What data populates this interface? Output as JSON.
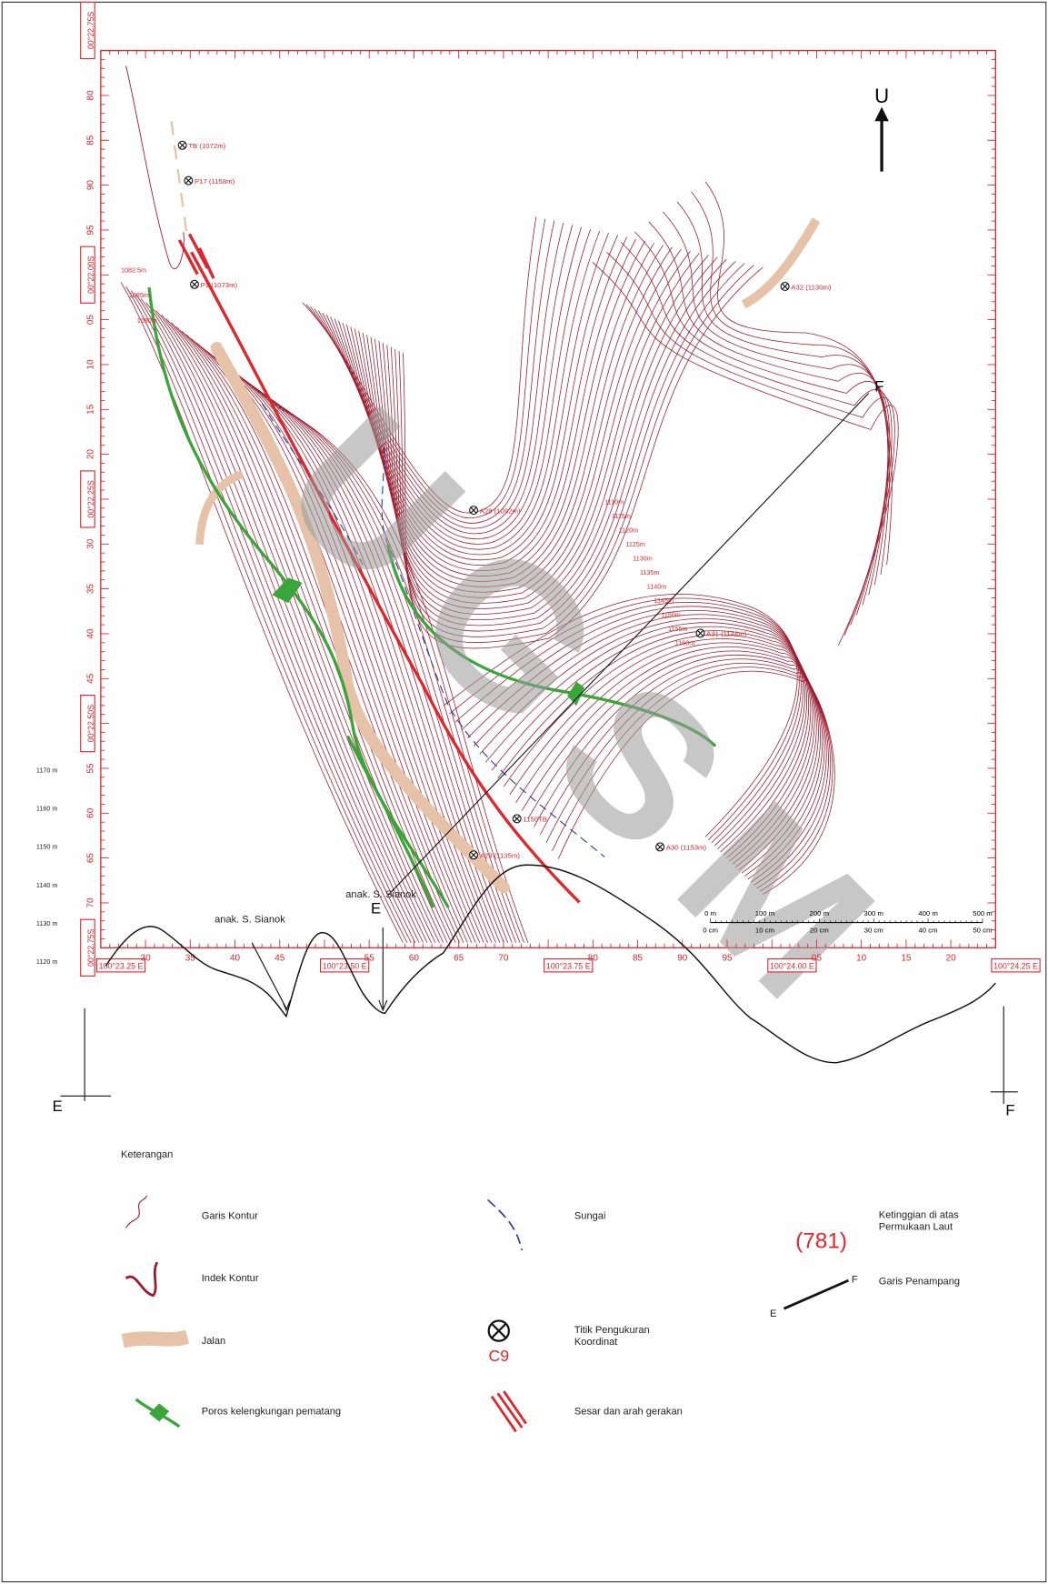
{
  "map": {
    "watermark": "UGSM",
    "north": "U",
    "lat_labels": [
      "00°22.75S",
      "80",
      "85",
      "90",
      "95",
      "00°22.00S",
      "05",
      "10",
      "15",
      "20",
      "00°22.25S",
      "30",
      "35",
      "40",
      "45",
      "00°22.50S",
      "55",
      "60",
      "65",
      "70",
      "00°22.75S"
    ],
    "lon_labels": [
      "100°23.25 E",
      "30",
      "35",
      "40",
      "45",
      "100°23.50 E",
      "55",
      "60",
      "65",
      "70",
      "100°23.75 E",
      "80",
      "85",
      "90",
      "95",
      "100°24.00 E",
      "05",
      "10",
      "15",
      "20",
      "100°24.25 E"
    ],
    "points": [
      "TB (1072m)",
      "P17 (1158m)",
      "P1 (1073m)",
      "A32 (1130m)",
      "A28 (1092m)",
      "A31 (1144m)",
      "1150TB",
      "A30 (1153m)",
      "A29 (1135m)"
    ],
    "contour_labels": [
      "1082.5m",
      "1085m",
      "1090m",
      "1110m",
      "1115m",
      "1120m",
      "1125m",
      "1130m",
      "1135m",
      "1140m",
      "1145m",
      "1150m",
      "1155m",
      "1160m"
    ],
    "section": {
      "start": "E",
      "end": "F"
    },
    "scale": {
      "m": [
        "0 m",
        "100 m",
        "200 m",
        "300 m",
        "400 m",
        "500 m"
      ],
      "cm": [
        "0 cm",
        "10 cm",
        "20 cm",
        "30 cm",
        "40 cm",
        "50 cm"
      ]
    }
  },
  "profile": {
    "yticks": [
      "1170 m",
      "1160 m",
      "1150 m",
      "1140 m",
      "1130 m",
      "1120 m"
    ],
    "annotations": [
      "anak. S. Sianok",
      "anak. S. Sianok"
    ],
    "start": "E",
    "end": "F"
  },
  "legend": {
    "title": "Keterangan",
    "contour": "Garis Kontur",
    "index_contour": "Indek Kontur",
    "road": "Jalan",
    "ridge": "Poros kelengkungan pematang",
    "river": "Sungai",
    "point": [
      "Titik Pengukuran",
      "Koordinat"
    ],
    "point_code": "C9",
    "fault": "Sesar dan arah gerakan",
    "elev_sample": "(781)",
    "elev": [
      "Ketinggian di atas",
      "Permukaan Laut"
    ],
    "section": "Garis Penampang",
    "section_e": "E",
    "section_f": "F"
  }
}
